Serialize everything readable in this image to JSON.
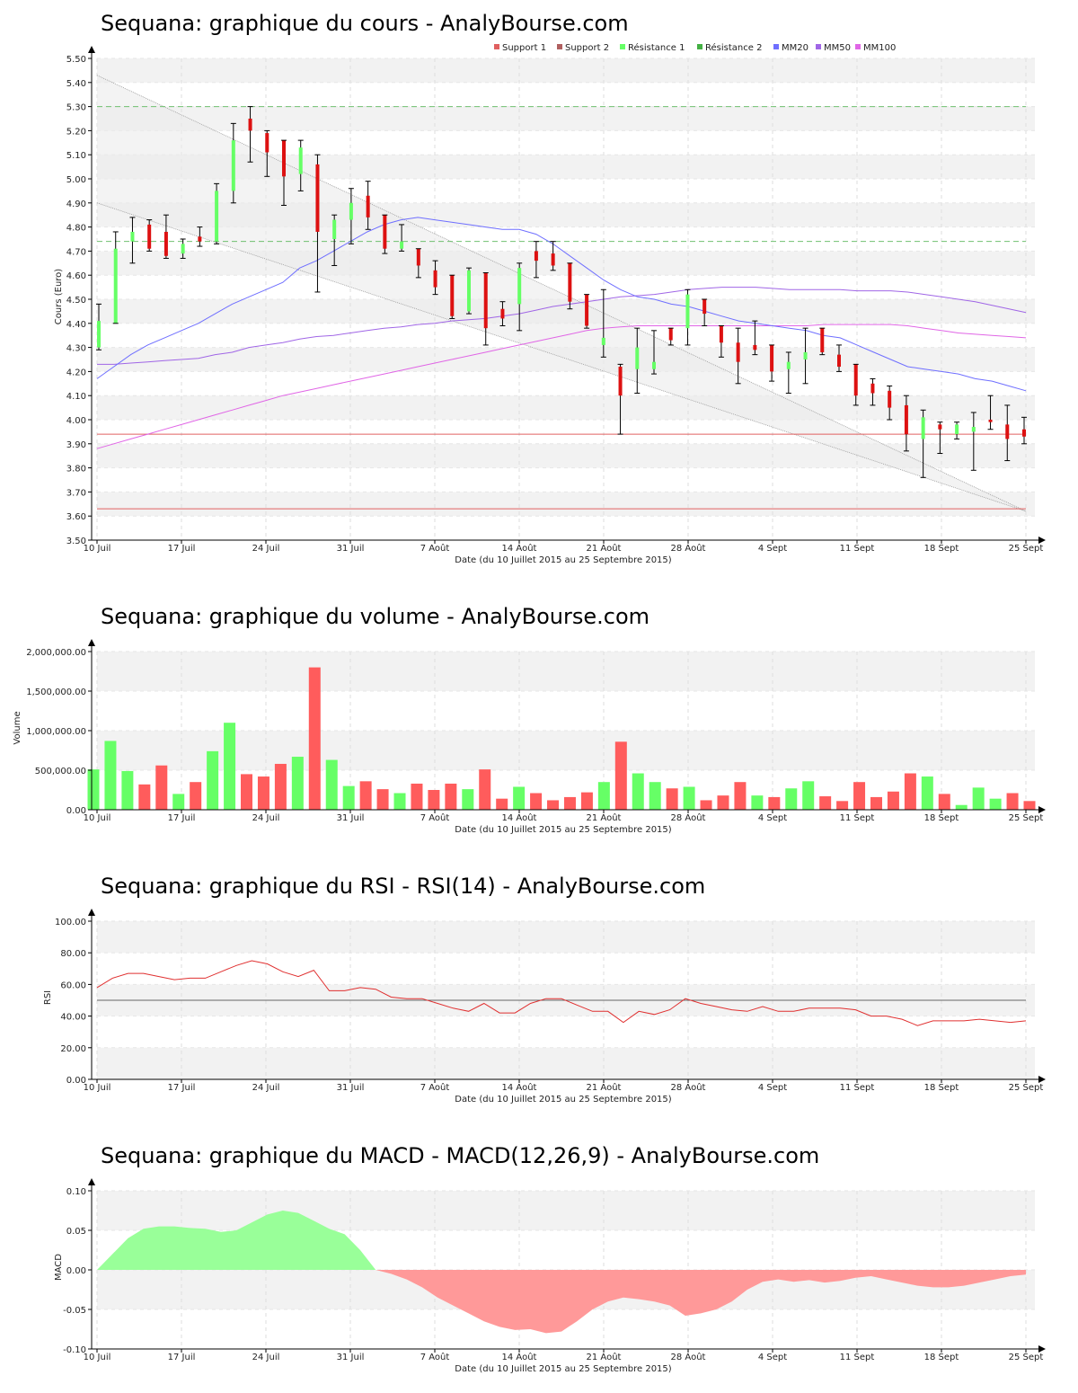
{
  "colors": {
    "up": "#66ff66",
    "down": "#dd1111",
    "wick": "#000000",
    "mm20": "#6f6fff",
    "mm50": "#a066e6",
    "mm100": "#e066e6",
    "support": "#e06060",
    "resistance": "#70c070",
    "vol_up": "#66ff66",
    "vol_down": "#ff5c5c",
    "rsi": "#e03030",
    "macd_pos": "#99ff99",
    "macd_neg": "#ff9999",
    "band_light": "#f2f2f2",
    "channel": "#ebebeb"
  },
  "x_labels": [
    "10 Juil",
    "17 Juil",
    "24 Juil",
    "31 Juil",
    "7 Août",
    "14 Août",
    "21 Août",
    "28 Août",
    "4 Sept",
    "11 Sept",
    "18 Sept",
    "25 Sept"
  ],
  "x_axis_title": "Date (du 10 Juillet 2015 au 25 Septembre 2015)",
  "chart_data": [
    {
      "type": "candlestick",
      "title": "Sequana: graphique du cours - AnalyBourse.com",
      "ylabel": "Cours (Euro)",
      "ylim": [
        3.5,
        5.5
      ],
      "yticks": [
        "3.50",
        "3.60",
        "3.70",
        "3.80",
        "3.90",
        "4.00",
        "4.10",
        "4.20",
        "4.30",
        "4.40",
        "4.50",
        "4.60",
        "4.70",
        "4.80",
        "4.90",
        "5.00",
        "5.10",
        "5.20",
        "5.30",
        "5.40",
        "5.50"
      ],
      "legend": [
        "Support 1",
        "Support 2",
        "Résistance 1",
        "Résistance 2",
        "MM20",
        "MM50",
        "MM100"
      ],
      "support1": 3.94,
      "support2": 3.63,
      "resistance1": 4.74,
      "resistance2": 5.3,
      "candles": [
        {
          "o": 4.3,
          "h": 4.48,
          "l": 4.29,
          "c": 4.41
        },
        {
          "o": 4.4,
          "h": 4.78,
          "l": 4.4,
          "c": 4.71
        },
        {
          "o": 4.74,
          "h": 4.84,
          "l": 4.65,
          "c": 4.78
        },
        {
          "o": 4.81,
          "h": 4.83,
          "l": 4.7,
          "c": 4.71
        },
        {
          "o": 4.78,
          "h": 4.85,
          "l": 4.67,
          "c": 4.68
        },
        {
          "o": 4.69,
          "h": 4.75,
          "l": 4.67,
          "c": 4.73
        },
        {
          "o": 4.76,
          "h": 4.8,
          "l": 4.72,
          "c": 4.74
        },
        {
          "o": 4.74,
          "h": 4.98,
          "l": 4.73,
          "c": 4.95
        },
        {
          "o": 4.95,
          "h": 5.23,
          "l": 4.9,
          "c": 5.16
        },
        {
          "o": 5.25,
          "h": 5.3,
          "l": 5.07,
          "c": 5.2
        },
        {
          "o": 5.19,
          "h": 5.2,
          "l": 5.01,
          "c": 5.11
        },
        {
          "o": 5.16,
          "h": 5.16,
          "l": 4.89,
          "c": 5.01
        },
        {
          "o": 5.02,
          "h": 5.16,
          "l": 4.95,
          "c": 5.13
        },
        {
          "o": 5.06,
          "h": 5.1,
          "l": 4.53,
          "c": 4.78
        },
        {
          "o": 4.75,
          "h": 4.85,
          "l": 4.64,
          "c": 4.83
        },
        {
          "o": 4.83,
          "h": 4.96,
          "l": 4.73,
          "c": 4.9
        },
        {
          "o": 4.93,
          "h": 4.99,
          "l": 4.79,
          "c": 4.84
        },
        {
          "o": 4.85,
          "h": 4.85,
          "l": 4.69,
          "c": 4.71
        },
        {
          "o": 4.71,
          "h": 4.81,
          "l": 4.7,
          "c": 4.74
        },
        {
          "o": 4.71,
          "h": 4.71,
          "l": 4.59,
          "c": 4.64
        },
        {
          "o": 4.62,
          "h": 4.66,
          "l": 4.52,
          "c": 4.55
        },
        {
          "o": 4.6,
          "h": 4.6,
          "l": 4.42,
          "c": 4.43
        },
        {
          "o": 4.45,
          "h": 4.63,
          "l": 4.44,
          "c": 4.62
        },
        {
          "o": 4.61,
          "h": 4.61,
          "l": 4.31,
          "c": 4.38
        },
        {
          "o": 4.46,
          "h": 4.49,
          "l": 4.39,
          "c": 4.42
        },
        {
          "o": 4.48,
          "h": 4.65,
          "l": 4.37,
          "c": 4.63
        },
        {
          "o": 4.7,
          "h": 4.74,
          "l": 4.59,
          "c": 4.66
        },
        {
          "o": 4.69,
          "h": 4.74,
          "l": 4.62,
          "c": 4.64
        },
        {
          "o": 4.65,
          "h": 4.65,
          "l": 4.46,
          "c": 4.49
        },
        {
          "o": 4.52,
          "h": 4.52,
          "l": 4.38,
          "c": 4.39
        },
        {
          "o": 4.31,
          "h": 4.54,
          "l": 4.26,
          "c": 4.34
        },
        {
          "o": 4.22,
          "h": 4.23,
          "l": 3.94,
          "c": 4.1
        },
        {
          "o": 4.21,
          "h": 4.38,
          "l": 4.11,
          "c": 4.3
        },
        {
          "o": 4.21,
          "h": 4.37,
          "l": 4.19,
          "c": 4.24
        },
        {
          "o": 4.38,
          "h": 4.38,
          "l": 4.31,
          "c": 4.33
        },
        {
          "o": 4.38,
          "h": 4.54,
          "l": 4.31,
          "c": 4.52
        },
        {
          "o": 4.5,
          "h": 4.5,
          "l": 4.39,
          "c": 4.44
        },
        {
          "o": 4.39,
          "h": 4.39,
          "l": 4.26,
          "c": 4.32
        },
        {
          "o": 4.32,
          "h": 4.38,
          "l": 4.15,
          "c": 4.24
        },
        {
          "o": 4.31,
          "h": 4.41,
          "l": 4.27,
          "c": 4.29
        },
        {
          "o": 4.31,
          "h": 4.31,
          "l": 4.16,
          "c": 4.2
        },
        {
          "o": 4.21,
          "h": 4.28,
          "l": 4.11,
          "c": 4.24
        },
        {
          "o": 4.25,
          "h": 4.38,
          "l": 4.15,
          "c": 4.28
        },
        {
          "o": 4.38,
          "h": 4.38,
          "l": 4.27,
          "c": 4.28
        },
        {
          "o": 4.27,
          "h": 4.31,
          "l": 4.2,
          "c": 4.22
        },
        {
          "o": 4.23,
          "h": 4.23,
          "l": 4.06,
          "c": 4.1
        },
        {
          "o": 4.15,
          "h": 4.17,
          "l": 4.06,
          "c": 4.11
        },
        {
          "o": 4.12,
          "h": 4.14,
          "l": 4.0,
          "c": 4.05
        },
        {
          "o": 4.06,
          "h": 4.1,
          "l": 3.87,
          "c": 3.94
        },
        {
          "o": 3.92,
          "h": 4.04,
          "l": 3.76,
          "c": 4.01
        },
        {
          "o": 3.98,
          "h": 3.99,
          "l": 3.86,
          "c": 3.96
        },
        {
          "o": 3.94,
          "h": 3.99,
          "l": 3.92,
          "c": 3.98
        },
        {
          "o": 3.95,
          "h": 4.03,
          "l": 3.79,
          "c": 3.97
        },
        {
          "o": 4.0,
          "h": 4.1,
          "l": 3.96,
          "c": 3.99
        },
        {
          "o": 3.98,
          "h": 4.06,
          "l": 3.83,
          "c": 3.92
        },
        {
          "o": 3.96,
          "h": 4.01,
          "l": 3.9,
          "c": 3.93
        }
      ],
      "mm20": [
        4.17,
        4.22,
        4.27,
        4.31,
        4.34,
        4.37,
        4.4,
        4.44,
        4.48,
        4.51,
        4.54,
        4.57,
        4.63,
        4.66,
        4.7,
        4.74,
        4.78,
        4.81,
        4.83,
        4.84,
        4.83,
        4.82,
        4.81,
        4.8,
        4.79,
        4.79,
        4.77,
        4.73,
        4.68,
        4.63,
        4.58,
        4.54,
        4.51,
        4.5,
        4.48,
        4.47,
        4.45,
        4.43,
        4.41,
        4.4,
        4.39,
        4.38,
        4.37,
        4.35,
        4.34,
        4.31,
        4.28,
        4.25,
        4.22,
        4.21,
        4.2,
        4.19,
        4.17,
        4.16,
        4.14,
        4.12
      ],
      "mm50": [
        4.23,
        4.23,
        4.235,
        4.24,
        4.245,
        4.25,
        4.255,
        4.27,
        4.28,
        4.3,
        4.31,
        4.32,
        4.335,
        4.345,
        4.35,
        4.36,
        4.37,
        4.38,
        4.385,
        4.395,
        4.4,
        4.41,
        4.415,
        4.42,
        4.43,
        4.44,
        4.455,
        4.47,
        4.48,
        4.49,
        4.5,
        4.51,
        4.515,
        4.52,
        4.53,
        4.54,
        4.545,
        4.55,
        4.55,
        4.55,
        4.545,
        4.54,
        4.54,
        4.54,
        4.54,
        4.535,
        4.535,
        4.535,
        4.53,
        4.52,
        4.51,
        4.5,
        4.49,
        4.475,
        4.46,
        4.445
      ],
      "mm100": [
        3.88,
        3.9,
        3.92,
        3.94,
        3.96,
        3.98,
        4.0,
        4.02,
        4.04,
        4.06,
        4.08,
        4.1,
        4.115,
        4.13,
        4.145,
        4.16,
        4.175,
        4.19,
        4.205,
        4.22,
        4.235,
        4.25,
        4.265,
        4.28,
        4.295,
        4.31,
        4.325,
        4.34,
        4.355,
        4.37,
        4.38,
        4.385,
        4.39,
        4.39,
        4.39,
        4.39,
        4.39,
        4.39,
        4.39,
        4.39,
        4.39,
        4.39,
        4.39,
        4.395,
        4.395,
        4.395,
        4.395,
        4.395,
        4.39,
        4.38,
        4.37,
        4.36,
        4.355,
        4.35,
        4.345,
        4.34
      ],
      "channel_upper": [
        5.43,
        3.62
      ],
      "channel_lower": [
        4.9,
        3.62
      ]
    },
    {
      "type": "bar",
      "title": "Sequana: graphique du volume - AnalyBourse.com",
      "ylabel": "Volume",
      "ylim": [
        0,
        2000000
      ],
      "yticks": [
        "0.00",
        "500,000.00",
        "1,000,000.00",
        "1,500,000.00",
        "2,000,000.00"
      ],
      "values": [
        510000,
        870000,
        490000,
        320000,
        560000,
        200000,
        350000,
        740000,
        1100000,
        450000,
        420000,
        580000,
        670000,
        1800000,
        630000,
        300000,
        360000,
        260000,
        210000,
        330000,
        250000,
        330000,
        260000,
        510000,
        140000,
        290000,
        210000,
        120000,
        160000,
        220000,
        350000,
        860000,
        460000,
        350000,
        270000,
        290000,
        120000,
        180000,
        350000,
        180000,
        160000,
        270000,
        360000,
        170000,
        110000,
        350000,
        160000,
        230000,
        460000,
        420000,
        200000,
        60000,
        280000,
        140000,
        210000,
        110000
      ],
      "up": [
        1,
        1,
        1,
        0,
        0,
        1,
        0,
        1,
        1,
        0,
        0,
        0,
        1,
        0,
        1,
        1,
        0,
        0,
        1,
        0,
        0,
        0,
        1,
        0,
        0,
        1,
        0,
        0,
        0,
        0,
        1,
        0,
        1,
        1,
        0,
        1,
        0,
        0,
        0,
        1,
        0,
        1,
        1,
        0,
        0,
        0,
        0,
        0,
        0,
        1,
        0,
        1,
        1,
        1,
        0,
        0
      ]
    },
    {
      "type": "line",
      "title": "Sequana: graphique du RSI - RSI(14) - AnalyBourse.com",
      "ylabel": "RSI",
      "ylim": [
        0,
        100
      ],
      "yticks": [
        "0.00",
        "20.00",
        "40.00",
        "60.00",
        "80.00",
        "100.00"
      ],
      "reference": 50,
      "values": [
        58,
        64,
        67,
        67,
        65,
        63,
        64,
        64,
        68,
        72,
        75,
        73,
        68,
        65,
        69,
        56,
        56,
        58,
        57,
        52,
        51,
        51,
        48,
        45,
        43,
        48,
        42,
        42,
        48,
        51,
        51,
        47,
        43,
        43,
        36,
        43,
        41,
        44,
        51,
        48,
        46,
        44,
        43,
        46,
        43,
        43,
        45,
        45,
        45,
        44,
        40,
        40,
        38,
        34,
        37,
        37,
        37,
        38,
        37,
        36,
        37
      ]
    },
    {
      "type": "area",
      "title": "Sequana: graphique du MACD - MACD(12,26,9) - AnalyBourse.com",
      "ylabel": "MACD",
      "ylim": [
        -0.1,
        0.1
      ],
      "yticks": [
        "-0.10",
        "-0.05",
        "0.00",
        "0.05",
        "0.10"
      ],
      "values": [
        0.0,
        0.02,
        0.04,
        0.052,
        0.055,
        0.055,
        0.053,
        0.052,
        0.048,
        0.05,
        0.06,
        0.07,
        0.075,
        0.072,
        0.062,
        0.052,
        0.045,
        0.025,
        0.0,
        -0.005,
        -0.012,
        -0.022,
        -0.035,
        -0.045,
        -0.055,
        -0.065,
        -0.072,
        -0.076,
        -0.075,
        -0.08,
        -0.078,
        -0.065,
        -0.05,
        -0.04,
        -0.035,
        -0.037,
        -0.04,
        -0.045,
        -0.058,
        -0.055,
        -0.05,
        -0.04,
        -0.025,
        -0.015,
        -0.012,
        -0.015,
        -0.013,
        -0.016,
        -0.014,
        -0.01,
        -0.008,
        -0.012,
        -0.016,
        -0.02,
        -0.022,
        -0.022,
        -0.02,
        -0.016,
        -0.012,
        -0.008,
        -0.006
      ]
    }
  ]
}
